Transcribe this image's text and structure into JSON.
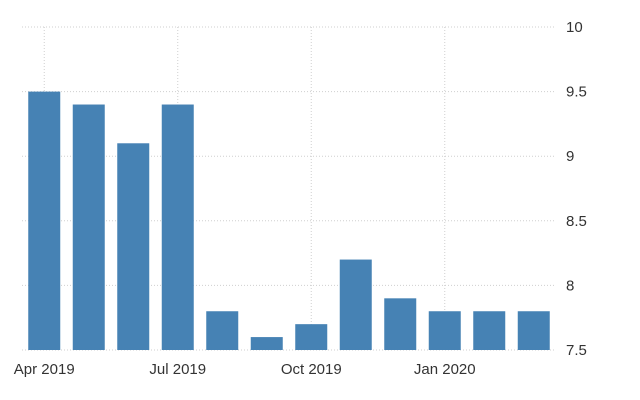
{
  "chart_data": {
    "type": "bar",
    "categories": [
      "Apr 2019",
      "May 2019",
      "Jun 2019",
      "Jul 2019",
      "Aug 2019",
      "Sep 2019",
      "Oct 2019",
      "Nov 2019",
      "Dec 2019",
      "Jan 2020",
      "Feb 2020",
      "Mar 2020"
    ],
    "values": [
      9.5,
      9.4,
      9.1,
      9.4,
      7.8,
      7.6,
      7.7,
      8.2,
      7.9,
      7.8,
      7.8,
      7.8
    ],
    "x_tick_labels": [
      "Apr 2019",
      "Jul 2019",
      "Oct 2019",
      "Jan 2020"
    ],
    "y_tick_labels": [
      "7.5",
      "8",
      "8.5",
      "9",
      "9.5",
      "10"
    ],
    "ylim": [
      7.5,
      10
    ],
    "y_axis_position": "right",
    "grid": true,
    "bar_color": "#4682b4",
    "grid_color": "#cfcfcf"
  }
}
